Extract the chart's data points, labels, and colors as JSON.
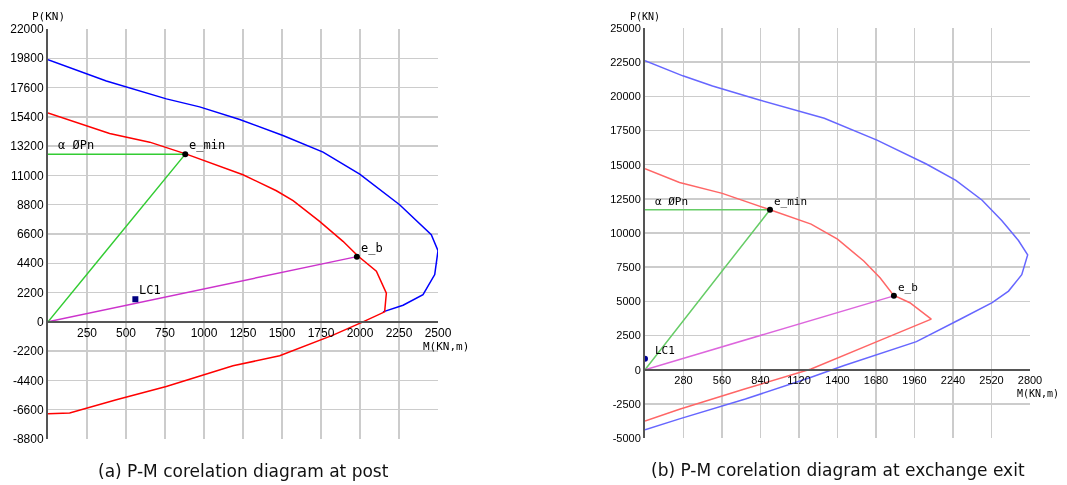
{
  "chart_data": [
    {
      "type": "line",
      "title": "(a) P-M corelation diagram at post",
      "xlabel": "M(KN,m)",
      "ylabel": "P(KN)",
      "xlim": [
        0,
        2500
      ],
      "ylim": [
        -8800,
        22000
      ],
      "xticks": [
        250,
        500,
        750,
        1000,
        1250,
        1500,
        1750,
        2000,
        2250,
        2500
      ],
      "yticks": [
        -8800,
        -6600,
        -4400,
        -2200,
        0,
        2200,
        4400,
        6600,
        8800,
        11000,
        13200,
        15400,
        17600,
        19800,
        22000
      ],
      "grid": true,
      "series": [
        {
          "color": "#0000ff",
          "x": [
            0,
            374,
            759,
            972,
            1229,
            1506,
            1763,
            1998,
            2254,
            2457,
            2500,
            2479,
            2404,
            2276,
            2147
          ],
          "values": [
            19700,
            18100,
            16750,
            16150,
            15200,
            14000,
            12750,
            11100,
            8800,
            6550,
            5350,
            3550,
            2050,
            1250,
            750
          ]
        },
        {
          "color": "#ff0000",
          "x": [
            0,
            395,
            652,
            887,
            1250,
            1464,
            1571,
            1741,
            1891,
            1987,
            2105,
            2169,
            2158,
            2019,
            1827,
            1485,
            1186,
            758,
            438,
            139,
            0
          ],
          "values": [
            15700,
            14150,
            13500,
            12600,
            11050,
            9850,
            9100,
            7550,
            6050,
            4950,
            3800,
            2150,
            750,
            0,
            -1000,
            -2550,
            -3300,
            -4850,
            -5850,
            -6850,
            -6900
          ]
        },
        {
          "color": "#33cc33",
          "x": [
            0,
            880,
            0
          ],
          "values": [
            0,
            12600,
            12600
          ]
        },
        {
          "color": "#cc33cc",
          "x": [
            0,
            1980
          ],
          "values": [
            0,
            4900
          ]
        },
        {
          "type": "scatter",
          "color": "#000000",
          "marker": "circle",
          "x": [
            880,
            1980
          ],
          "values": [
            12600,
            4900
          ]
        },
        {
          "type": "scatter",
          "color": "#000080",
          "marker": "square",
          "x": [
            560
          ],
          "values": [
            1700
          ]
        }
      ],
      "annotations": [
        {
          "text": "α ØPn",
          "x": 0,
          "y": 12600
        },
        {
          "text": "e_min",
          "x": 880,
          "y": 12600
        },
        {
          "text": "e_b",
          "x": 1980,
          "y": 4900
        },
        {
          "text": "LC1",
          "x": 560,
          "y": 1700
        }
      ]
    },
    {
      "type": "line",
      "title": "(b) P-M corelation diagram at exchange exit",
      "xlabel": "M(KN,m)",
      "ylabel": "P(KN)",
      "xlim": [
        0,
        2800
      ],
      "ylim": [
        -5000,
        25000
      ],
      "xticks": [
        280,
        560,
        840,
        1120,
        1400,
        1680,
        1960,
        2240,
        2520,
        2800
      ],
      "yticks": [
        -5000,
        -2500,
        0,
        2500,
        5000,
        7500,
        10000,
        12500,
        15000,
        17500,
        20000,
        22500,
        25000
      ],
      "grid": true,
      "series": [
        {
          "color": "#6666ff",
          "x": [
            0,
            275,
            491,
            826,
            1304,
            1687,
            2046,
            2261,
            2452,
            2596,
            2716,
            2783,
            2740,
            2644,
            2525,
            2285,
            1974,
            1448,
            1208,
            730,
            251,
            0
          ],
          "values": [
            22600,
            21500,
            20750,
            19750,
            18400,
            16800,
            15050,
            13850,
            12400,
            10900,
            9450,
            8400,
            6950,
            5750,
            4900,
            3650,
            2050,
            300,
            -550,
            -2150,
            -3600,
            -4400
          ]
        },
        {
          "color": "#ff6666",
          "x": [
            0,
            251,
            562,
            909,
            1208,
            1400,
            1591,
            1711,
            1807,
            1926,
            2082,
            1687,
            1208,
            730,
            251,
            0
          ],
          "values": [
            14700,
            13700,
            12900,
            11700,
            10650,
            9550,
            7950,
            6700,
            5450,
            4900,
            3700,
            2050,
            50,
            -1400,
            -2900,
            -3750
          ]
        },
        {
          "color": "#66cc66",
          "x": [
            0,
            909,
            0
          ],
          "values": [
            0,
            11700,
            11700
          ]
        },
        {
          "color": "#dd66dd",
          "x": [
            0,
            1810
          ],
          "values": [
            0,
            5400
          ]
        },
        {
          "type": "scatter",
          "color": "#000000",
          "marker": "circle",
          "x": [
            909,
            1810
          ],
          "values": [
            11700,
            5400
          ]
        },
        {
          "type": "scatter",
          "color": "#000099",
          "marker": "circle",
          "x": [
            0
          ],
          "values": [
            800
          ]
        }
      ],
      "annotations": [
        {
          "text": "α ØPn",
          "x": 0,
          "y": 11700
        },
        {
          "text": "e_min",
          "x": 909,
          "y": 11700
        },
        {
          "text": "e_b",
          "x": 1810,
          "y": 5400
        },
        {
          "text": "LC1",
          "x": 0,
          "y": 800
        }
      ]
    }
  ]
}
